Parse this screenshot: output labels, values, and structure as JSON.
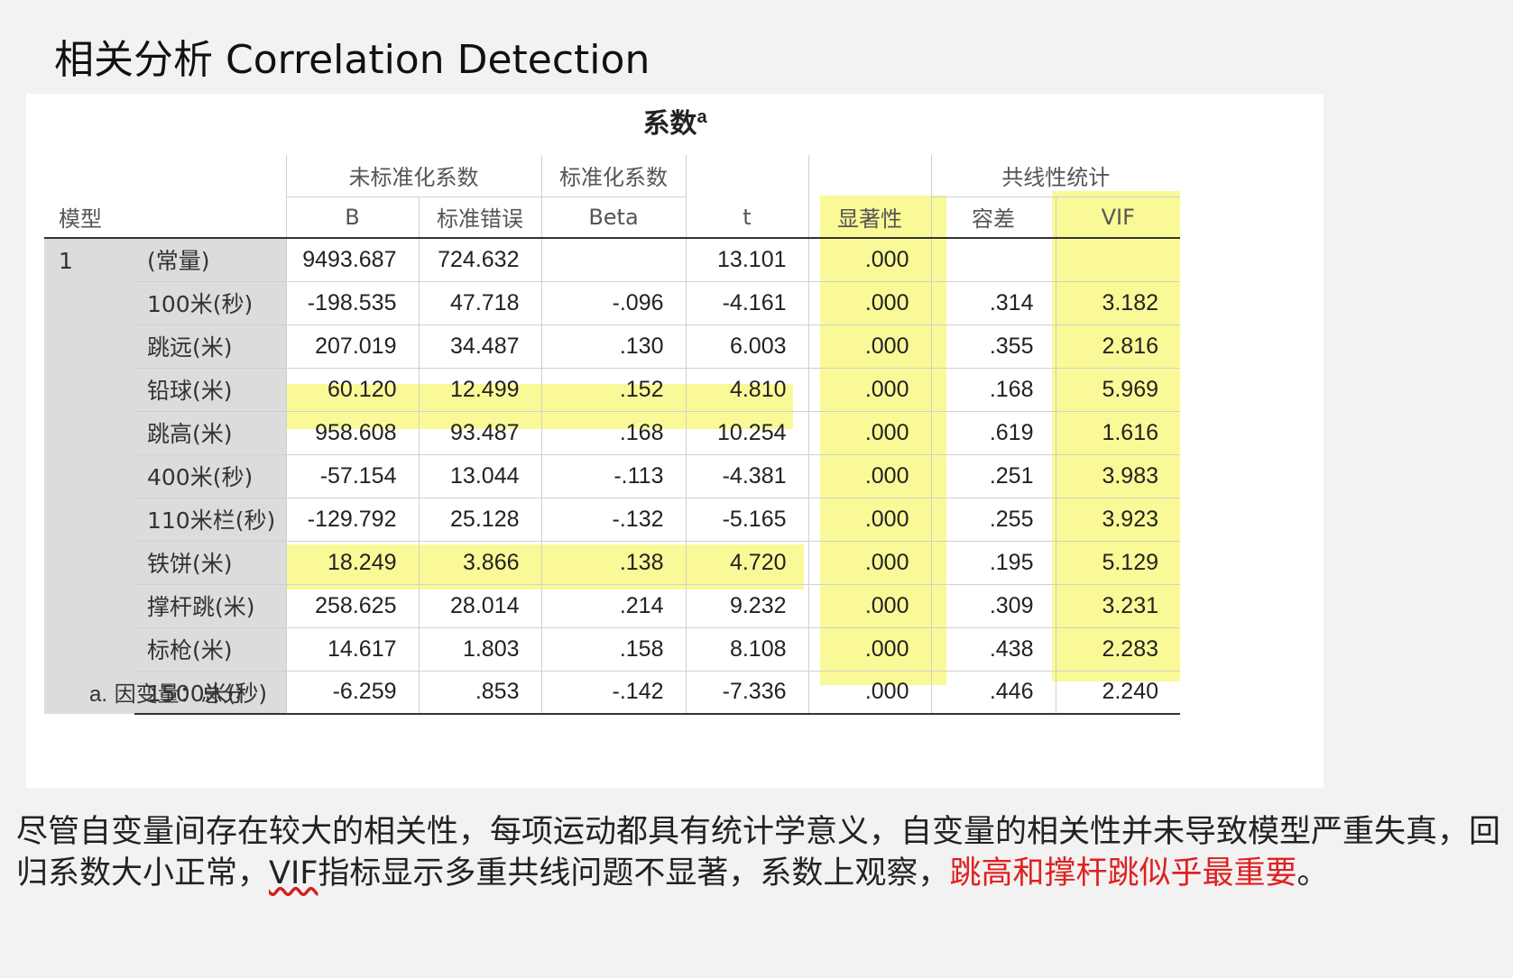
{
  "title": "相关分析 Correlation Detection",
  "table": {
    "title": "系数",
    "title_sup": "a",
    "header_row1": {
      "model": "",
      "unstd": "未标准化系数",
      "std": "标准化系数",
      "t": "",
      "sig": "",
      "collin": "共线性统计"
    },
    "header_row2": {
      "model": "模型",
      "b": "B",
      "se": "标准错误",
      "beta": "Beta",
      "t": "t",
      "sig": "显著性",
      "tol": "容差",
      "vif": "VIF"
    },
    "model_number": "1",
    "rows": [
      {
        "var": "(常量)",
        "b": "9493.687",
        "se": "724.632",
        "beta": "",
        "t": "13.101",
        "sig": ".000",
        "tol": "",
        "vif": ""
      },
      {
        "var": "100米(秒)",
        "b": "-198.535",
        "se": "47.718",
        "beta": "-.096",
        "t": "-4.161",
        "sig": ".000",
        "tol": ".314",
        "vif": "3.182"
      },
      {
        "var": "跳远(米)",
        "b": "207.019",
        "se": "34.487",
        "beta": ".130",
        "t": "6.003",
        "sig": ".000",
        "tol": ".355",
        "vif": "2.816"
      },
      {
        "var": "铅球(米)",
        "b": "60.120",
        "se": "12.499",
        "beta": ".152",
        "t": "4.810",
        "sig": ".000",
        "tol": ".168",
        "vif": "5.969"
      },
      {
        "var": "跳高(米)",
        "b": "958.608",
        "se": "93.487",
        "beta": ".168",
        "t": "10.254",
        "sig": ".000",
        "tol": ".619",
        "vif": "1.616"
      },
      {
        "var": "400米(秒)",
        "b": "-57.154",
        "se": "13.044",
        "beta": "-.113",
        "t": "-4.381",
        "sig": ".000",
        "tol": ".251",
        "vif": "3.983"
      },
      {
        "var": "110米栏(秒)",
        "b": "-129.792",
        "se": "25.128",
        "beta": "-.132",
        "t": "-5.165",
        "sig": ".000",
        "tol": ".255",
        "vif": "3.923"
      },
      {
        "var": "铁饼(米)",
        "b": "18.249",
        "se": "3.866",
        "beta": ".138",
        "t": "4.720",
        "sig": ".000",
        "tol": ".195",
        "vif": "5.129"
      },
      {
        "var": "撑杆跳(米)",
        "b": "258.625",
        "se": "28.014",
        "beta": ".214",
        "t": "9.232",
        "sig": ".000",
        "tol": ".309",
        "vif": "3.231"
      },
      {
        "var": "标枪(米)",
        "b": "14.617",
        "se": "1.803",
        "beta": ".158",
        "t": "8.108",
        "sig": ".000",
        "tol": ".438",
        "vif": "2.283"
      },
      {
        "var": "1500米(秒)",
        "b": "-6.259",
        "se": ".853",
        "beta": "-.142",
        "t": "-7.336",
        "sig": ".000",
        "tol": ".446",
        "vif": "2.240"
      }
    ],
    "footnote_letter": "a.",
    "footnote_text": "因变量：总分"
  },
  "conclusion": {
    "part1": "尽管自变量间存在较大的相关性，每项运动都具有统计学意义，自变量的相关性并未导致模型严重失真，回归系数大小正常，",
    "vif_word": "VIF",
    "part2": "指标显示多重共线问题不显著，系数上观察，",
    "highlight": "跳高和撑杆跳似乎最重要",
    "end": "。"
  },
  "colors": {
    "highlight": "#f7f77a",
    "emphasis_text": "#e02020",
    "label_column": "#dcdcdc"
  }
}
